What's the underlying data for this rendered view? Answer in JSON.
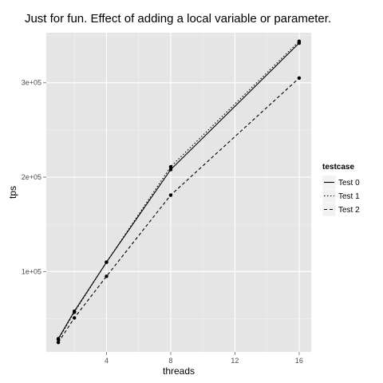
{
  "chart_data": {
    "type": "line",
    "title": "Just for fun. Effect of adding a local variable or parameter.",
    "xlabel": "threads",
    "ylabel": "tps",
    "x": [
      1,
      2,
      4,
      8,
      16
    ],
    "xlim": [
      0.25,
      16.75
    ],
    "ylim": [
      15000,
      353000
    ],
    "x_ticks": [
      4,
      8,
      12,
      16
    ],
    "x_tick_labels": [
      "4",
      "8",
      "12",
      "16"
    ],
    "y_ticks": [
      100000,
      200000,
      300000
    ],
    "y_tick_labels": [
      "1e+05",
      "2e+05",
      "3e+05"
    ],
    "legend_title": "testcase",
    "legend_position": "right",
    "grid": true,
    "series": [
      {
        "name": "Test 0",
        "dash": "solid",
        "values": [
          29000,
          58000,
          110000,
          208000,
          342000
        ]
      },
      {
        "name": "Test 1",
        "dash": "dotted",
        "values": [
          28000,
          57000,
          110000,
          211000,
          344000
        ]
      },
      {
        "name": "Test 2",
        "dash": "dashed",
        "values": [
          25000,
          51000,
          95000,
          181000,
          305000
        ]
      }
    ]
  }
}
